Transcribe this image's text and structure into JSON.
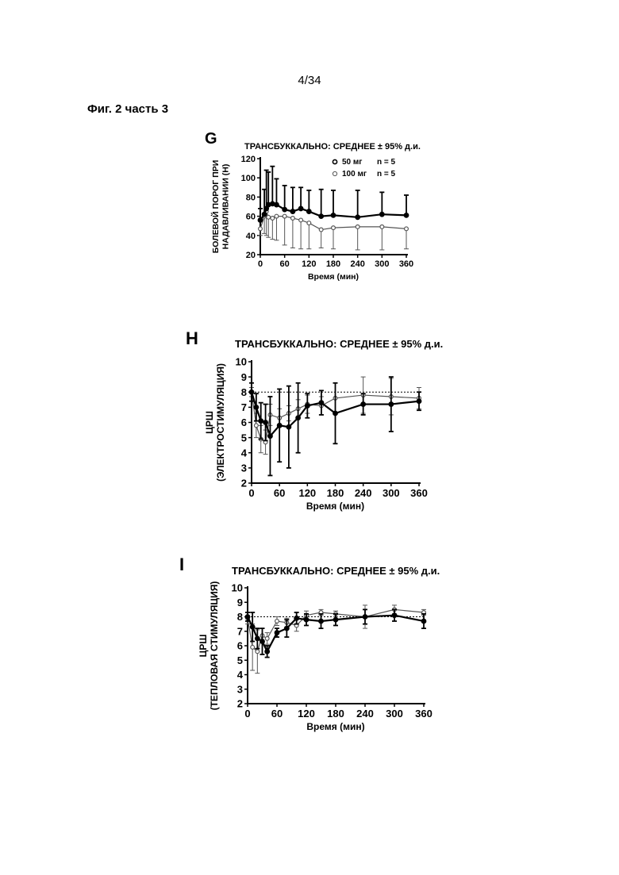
{
  "page": {
    "number": "4/34",
    "caption": "Фиг. 2 часть 3"
  },
  "chart_data": [
    {
      "type": "line",
      "panel_label": "G",
      "title": "ТРАНСБУККАЛЬНО: СРЕДНЕЕ ± 95% д.и.",
      "xlabel": "Время (мин)",
      "ylabel": [
        "БОЛЕВОЙ ПОРОГ ПРИ",
        "НАДАВЛИВАНИИ (Н)"
      ],
      "xlim": [
        0,
        360
      ],
      "ylim": [
        20,
        120
      ],
      "xticks": [
        0,
        60,
        120,
        180,
        240,
        300,
        360
      ],
      "yticks": [
        20,
        40,
        60,
        80,
        100,
        120
      ],
      "x": [
        0,
        10,
        15,
        20,
        30,
        40,
        60,
        80,
        100,
        120,
        150,
        180,
        240,
        300,
        360
      ],
      "legend_position": "top-right",
      "series": [
        {
          "name": "50 мг",
          "n_label": "n = 5",
          "style": "filled",
          "values": [
            56,
            62,
            68,
            72,
            73,
            72,
            67,
            65,
            68,
            65,
            60,
            61,
            59,
            62,
            61
          ],
          "err_upper": [
            68,
            88,
            108,
            106,
            112,
            99,
            92,
            90,
            90,
            87,
            88,
            87,
            87,
            85,
            82
          ]
        },
        {
          "name": "100 мг",
          "n_label": "n = 5",
          "style": "open",
          "values": [
            47,
            60,
            65,
            59,
            58,
            60,
            60,
            58,
            56,
            53,
            46,
            48,
            49,
            49,
            47
          ],
          "err_lower": [
            40,
            42,
            40,
            38,
            36,
            35,
            30,
            27,
            26,
            26,
            27,
            26,
            25,
            25,
            26
          ]
        }
      ]
    },
    {
      "type": "line",
      "panel_label": "H",
      "title": "ТРАНСБУККАЛЬНО: СРЕДНЕЕ ± 95% д.и.",
      "xlabel": "Время (мин)",
      "ylabel": [
        "ЦРШ",
        "(ЭЛЕКТРОСТИМУЛЯЦИЯ)"
      ],
      "xlim": [
        0,
        360
      ],
      "ylim": [
        2,
        10
      ],
      "xticks": [
        0,
        60,
        120,
        180,
        240,
        300,
        360
      ],
      "yticks": [
        2,
        3,
        4,
        5,
        6,
        7,
        8,
        9,
        10
      ],
      "reference_line": 8,
      "x": [
        0,
        10,
        20,
        30,
        40,
        60,
        80,
        100,
        120,
        150,
        180,
        240,
        300,
        360
      ],
      "series": [
        {
          "style": "filled",
          "values": [
            8.0,
            7.0,
            6.1,
            6.0,
            5.1,
            5.8,
            5.7,
            6.3,
            7.1,
            7.3,
            6.6,
            7.2,
            7.2,
            7.4
          ],
          "err": [
            0.6,
            0.9,
            1.2,
            1.2,
            2.6,
            2.4,
            2.7,
            2.3,
            0.8,
            0.8,
            2.0,
            0.7,
            1.8,
            0.6
          ]
        },
        {
          "style": "open",
          "values": [
            8.0,
            5.8,
            4.9,
            4.7,
            6.5,
            6.3,
            6.6,
            6.9,
            7.2,
            7.1,
            7.6,
            7.8,
            7.7,
            7.6
          ],
          "err": [
            0.3,
            0.8,
            0.9,
            0.8,
            0.7,
            0.6,
            0.5,
            0.6,
            0.6,
            0.6,
            1.0,
            1.2,
            1.2,
            0.7
          ]
        }
      ]
    },
    {
      "type": "line",
      "panel_label": "I",
      "title": "ТРАНСБУККАЛЬНО: СРЕДНЕЕ ± 95% д.и.",
      "xlabel": "Время (мин)",
      "ylabel": [
        "ЦРШ",
        "(ТЕПЛОВАЯ СТИМУЛЯЦИЯ)"
      ],
      "xlim": [
        0,
        360
      ],
      "ylim": [
        2,
        10
      ],
      "xticks": [
        0,
        60,
        120,
        180,
        240,
        300,
        360
      ],
      "yticks": [
        2,
        3,
        4,
        5,
        6,
        7,
        8,
        9,
        10
      ],
      "reference_line": 8,
      "x": [
        0,
        10,
        20,
        30,
        40,
        60,
        80,
        100,
        120,
        150,
        180,
        240,
        300,
        360
      ],
      "series": [
        {
          "style": "filled",
          "values": [
            8.0,
            7.3,
            6.5,
            6.3,
            5.6,
            6.9,
            7.2,
            7.9,
            7.8,
            7.7,
            7.8,
            8.0,
            8.1,
            7.7
          ],
          "err": [
            0.3,
            1.0,
            0.7,
            0.9,
            0.4,
            0.3,
            0.6,
            0.4,
            0.4,
            0.5,
            0.4,
            0.5,
            0.4,
            0.5
          ]
        },
        {
          "style": "open",
          "values": [
            7.9,
            5.9,
            5.6,
            6.7,
            6.5,
            7.7,
            7.6,
            7.4,
            8.1,
            8.3,
            8.2,
            8.0,
            8.5,
            8.3
          ],
          "err": [
            0.4,
            1.6,
            1.5,
            0.5,
            0.4,
            0.3,
            0.3,
            0.4,
            0.3,
            0.2,
            0.2,
            0.8,
            0.3,
            0.2
          ]
        }
      ]
    }
  ]
}
